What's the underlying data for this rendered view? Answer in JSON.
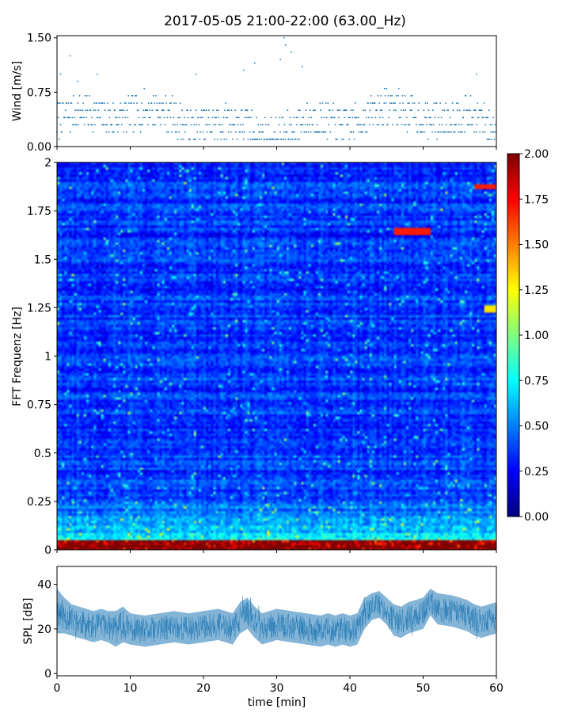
{
  "figure": {
    "title": "2017-05-05 21:00-22:00 (63.00_Hz)"
  },
  "chart_data": [
    {
      "type": "scatter",
      "name": "wind",
      "ylabel": "Wind [m/s]",
      "xlim": [
        0,
        60
      ],
      "ylim": [
        0,
        1.53
      ],
      "yticks": [
        0.0,
        0.75,
        1.5
      ],
      "ytick_labels": [
        "0.00",
        "0.75",
        "1.50"
      ],
      "marker_color": "#1f77b4",
      "y_resolution": 0.1,
      "sample_count": 720,
      "points": [
        [
          1.8,
          1.25
        ],
        [
          27.0,
          1.15
        ],
        [
          31.0,
          1.5
        ],
        [
          31.2,
          1.4
        ],
        [
          33.5,
          1.1
        ],
        [
          5.5,
          1.0
        ],
        [
          19.0,
          1.0
        ],
        [
          25.5,
          1.05
        ],
        [
          57.3,
          1.0
        ],
        [
          0.5,
          1.0
        ],
        [
          2.8,
          0.9
        ],
        [
          32.0,
          1.3
        ],
        [
          30.5,
          1.2
        ]
      ]
    },
    {
      "type": "heatmap",
      "name": "spectrogram",
      "ylabel": "FFT Frequenz [Hz]",
      "xlim": [
        0,
        60
      ],
      "ylim": [
        0,
        2
      ],
      "yticks": [
        0,
        0.25,
        0.5,
        0.75,
        1,
        1.25,
        1.5,
        1.75,
        2
      ],
      "ytick_labels": [
        "0",
        "0.25",
        "0.5",
        "0.75",
        "1",
        "1.25",
        "1.5",
        "1.75",
        "2"
      ],
      "colormap": "jet",
      "clim": [
        0,
        2
      ],
      "colorbar_ticks": [
        "0.00",
        "0.25",
        "0.50",
        "0.75",
        "1.00",
        "1.25",
        "1.50",
        "1.75",
        "2.00"
      ],
      "time_bins": 180,
      "freq_bins": 160,
      "features": [
        {
          "t": [
            46,
            51
          ],
          "f": [
            1.62,
            1.66
          ],
          "value": 1.7
        },
        {
          "t": [
            57,
            60
          ],
          "f": [
            1.86,
            1.89
          ],
          "value": 1.7
        },
        {
          "t": [
            58.5,
            60
          ],
          "f": [
            1.23,
            1.26
          ],
          "value": 1.3
        }
      ]
    },
    {
      "type": "area",
      "name": "spl",
      "ylabel": "SPL [dB]",
      "xlabel": "time [min]",
      "xlim": [
        0,
        60
      ],
      "ylim": [
        -1,
        48
      ],
      "yticks": [
        0,
        20,
        40
      ],
      "ytick_labels": [
        "0",
        "20",
        "40"
      ],
      "xticks": [
        0,
        10,
        20,
        30,
        40,
        50,
        60
      ],
      "xtick_labels": [
        "0",
        "10",
        "20",
        "30",
        "40",
        "50",
        "60"
      ],
      "color": "#1f77b4",
      "x": [
        0,
        1,
        2,
        3,
        4,
        5,
        6,
        7,
        8,
        9,
        10,
        12,
        14,
        16,
        18,
        20,
        22,
        24,
        25,
        26,
        27,
        28,
        30,
        32,
        34,
        36,
        37,
        38,
        39,
        40,
        41,
        42,
        43,
        44,
        45,
        46,
        47,
        48,
        50,
        51,
        52,
        54,
        56,
        57,
        58,
        60
      ],
      "mean": [
        28,
        26,
        24,
        23,
        22,
        21,
        22,
        21,
        20,
        22,
        20,
        19,
        20,
        21,
        20,
        21,
        22,
        20,
        25,
        27,
        23,
        20,
        22,
        21,
        20,
        19,
        20,
        19,
        20,
        19,
        20,
        27,
        30,
        31,
        28,
        24,
        23,
        25,
        27,
        32,
        29,
        28,
        26,
        24,
        23,
        25
      ],
      "spread": [
        10,
        8,
        7,
        7,
        7,
        7,
        7,
        7,
        8,
        8,
        7,
        7,
        7,
        7,
        7,
        7,
        7,
        7,
        7,
        7,
        7,
        7,
        7,
        7,
        7,
        7,
        7,
        7,
        7,
        7,
        7,
        7,
        6,
        6,
        6,
        7,
        7,
        7,
        7,
        6,
        7,
        7,
        7,
        7,
        7,
        7
      ]
    }
  ]
}
